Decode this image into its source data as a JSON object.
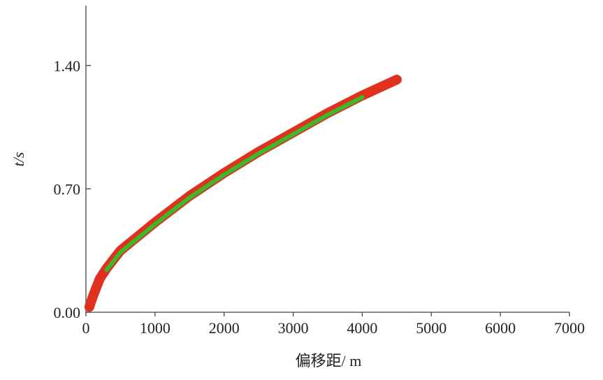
{
  "chart_data": {
    "type": "line",
    "x_label": "偏移距/ m",
    "y_label": "t/s",
    "x": [
      50,
      100,
      200,
      300,
      500,
      1000,
      1500,
      2000,
      2500,
      3000,
      3500,
      4000,
      4500
    ],
    "series": [
      {
        "color": "#e0301e",
        "values": [
          0.03,
          0.09,
          0.19,
          0.25,
          0.35,
          0.51,
          0.66,
          0.79,
          0.91,
          1.02,
          1.13,
          1.23,
          1.32
        ]
      },
      {
        "color": "#3cb82c",
        "values": [
          null,
          null,
          null,
          0.24,
          0.34,
          0.5,
          0.65,
          0.78,
          0.9,
          1.01,
          1.12,
          1.22,
          null
        ]
      }
    ],
    "xlim": [
      0,
      7000
    ],
    "xticks": [
      0,
      1000,
      2000,
      3000,
      4000,
      5000,
      6000,
      7000
    ],
    "ylim": [
      0,
      1.74
    ],
    "yticks": [
      {
        "value": 0,
        "label": "0.00"
      },
      {
        "value": 0.7,
        "label": "0.70"
      },
      {
        "value": 1.4,
        "label": "1.40"
      }
    ],
    "grid": false
  }
}
